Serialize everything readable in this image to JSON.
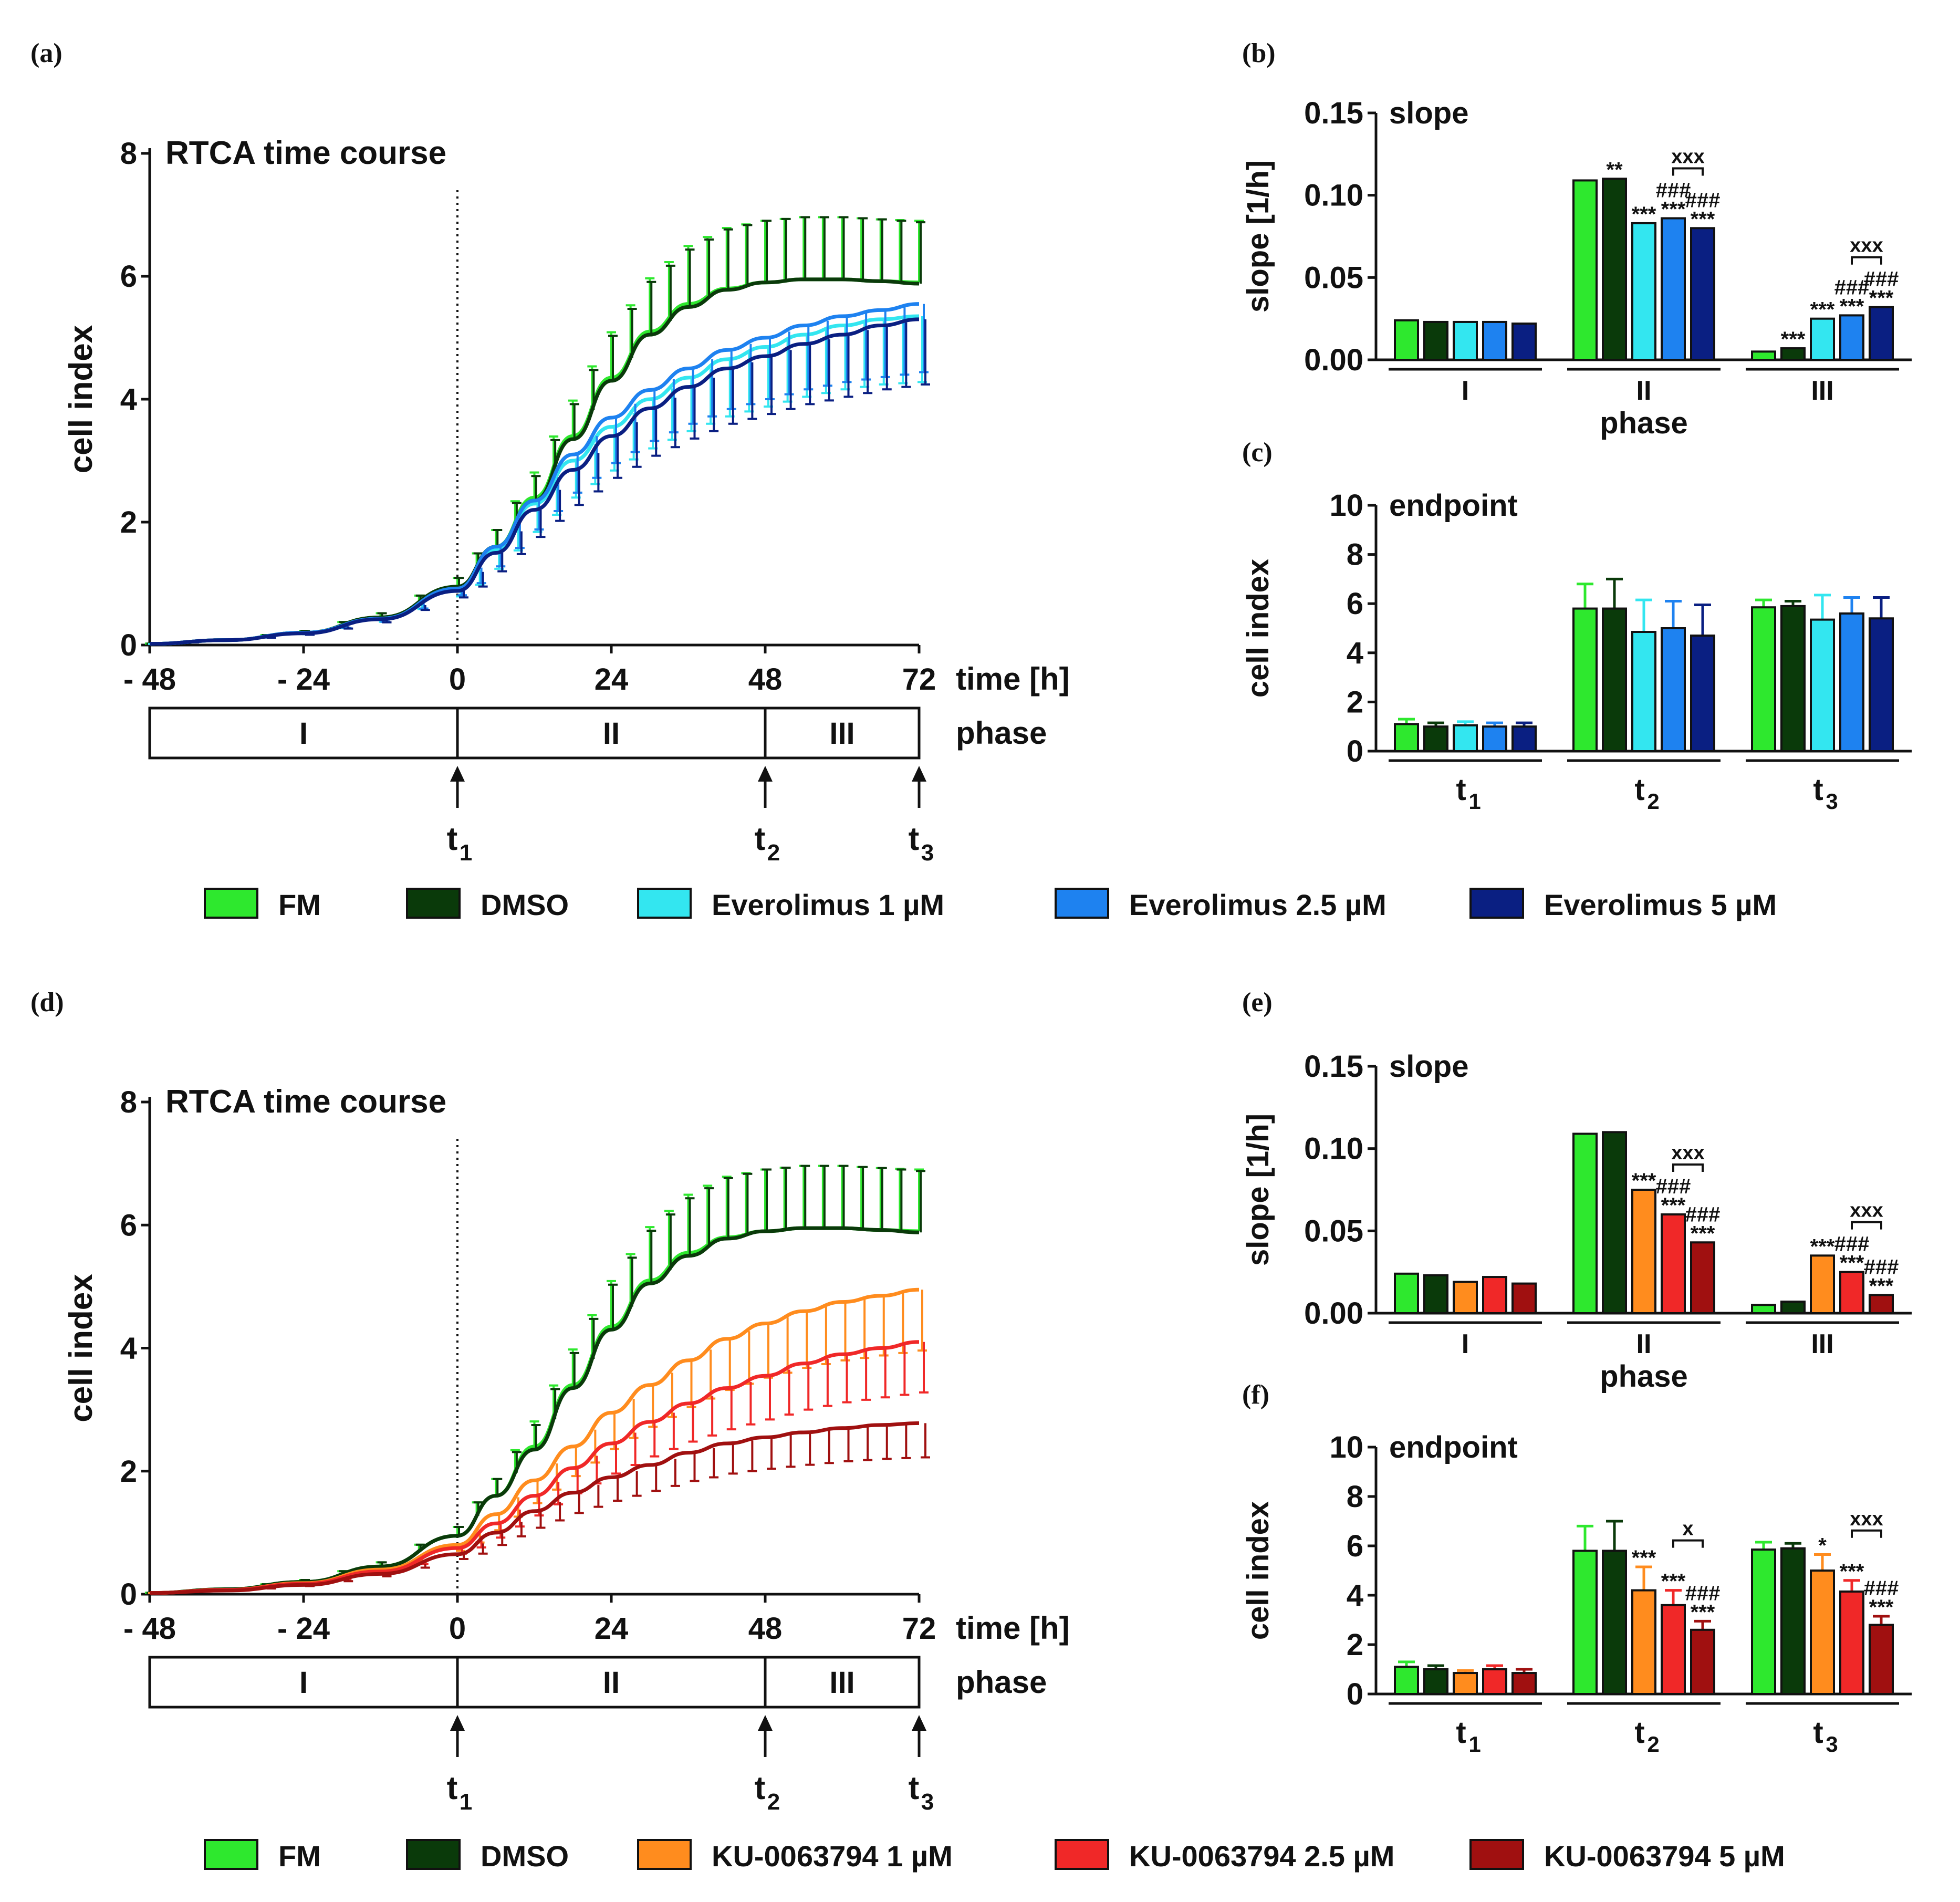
{
  "panel_labels": {
    "a": "(a)",
    "b": "(b)",
    "c": "(c)",
    "d": "(d)",
    "e": "(e)",
    "f": "(f)"
  },
  "colors": {
    "FM": "#2ee82e",
    "DMSO": "#0a3a0a",
    "Eve1": "#33e6f0",
    "Eve25": "#1e82f0",
    "Eve5": "#0a1f82",
    "KU1": "#ff8c1e",
    "KU25": "#f02828",
    "KU5": "#a01010"
  },
  "common": {
    "tc_title": "RTCA time course",
    "y_label_tc": "cell index",
    "x_label_tc": "time [h]",
    "phase_label": "phase",
    "slope_title": "slope",
    "slope_ylabel": "slope [1/h]",
    "slope_xlabel": "phase",
    "endpoint_title": "endpoint",
    "endpoint_ylabel": "cell index",
    "x_ticks": [
      "- 48",
      "- 24",
      "0",
      "24",
      "48",
      "72"
    ],
    "y_ticks_tc": [
      "0",
      "2",
      "4",
      "6",
      "8"
    ],
    "y_ticks_slope": [
      "0.00",
      "0.05",
      "0.10",
      "0.15"
    ],
    "y_ticks_endpoint": [
      "0",
      "2",
      "4",
      "6",
      "8",
      "10"
    ],
    "phases": [
      "I",
      "II",
      "III"
    ],
    "timepoints": [
      "t",
      "t",
      "t"
    ],
    "timepoint_subs": [
      "1",
      "2",
      "3"
    ]
  },
  "legend_top": [
    {
      "key": "FM",
      "label": "FM"
    },
    {
      "key": "DMSO",
      "label": "DMSO"
    },
    {
      "key": "Eve1",
      "label": "Everolimus   1 µM"
    },
    {
      "key": "Eve25",
      "label": "Everolimus   2.5 µM"
    },
    {
      "key": "Eve5",
      "label": "Everolimus   5 µM"
    }
  ],
  "legend_bottom": [
    {
      "key": "FM",
      "label": "FM"
    },
    {
      "key": "DMSO",
      "label": "DMSO"
    },
    {
      "key": "KU1",
      "label": "KU-0063794  1 µM"
    },
    {
      "key": "KU25",
      "label": "KU-0063794  2.5 µM"
    },
    {
      "key": "KU5",
      "label": "KU-0063794  5 µM"
    }
  ],
  "chart_data": [
    {
      "id": "a",
      "type": "line",
      "title": "RTCA time course",
      "xlabel": "time [h]",
      "ylabel": "cell index",
      "xlim": [
        -48,
        72
      ],
      "ylim": [
        0,
        8
      ],
      "series": [
        {
          "name": "FM",
          "key": "FM",
          "x": [
            -48,
            -36,
            -24,
            -12,
            0,
            6,
            12,
            18,
            24,
            30,
            36,
            42,
            48,
            54,
            60,
            66,
            72
          ],
          "y": [
            0.02,
            0.08,
            0.2,
            0.45,
            0.95,
            1.6,
            2.4,
            3.4,
            4.35,
            5.1,
            5.55,
            5.8,
            5.9,
            5.95,
            5.95,
            5.92,
            5.9
          ]
        },
        {
          "name": "DMSO",
          "key": "DMSO",
          "x": [
            -48,
            -36,
            -24,
            -12,
            0,
            6,
            12,
            18,
            24,
            30,
            36,
            42,
            48,
            54,
            60,
            66,
            72
          ],
          "y": [
            0.02,
            0.08,
            0.2,
            0.45,
            0.95,
            1.6,
            2.35,
            3.35,
            4.3,
            5.05,
            5.5,
            5.78,
            5.9,
            5.95,
            5.95,
            5.92,
            5.88
          ]
        },
        {
          "name": "Everolimus 1 µM",
          "key": "Eve1",
          "x": [
            -48,
            -36,
            -24,
            -12,
            0,
            6,
            12,
            18,
            24,
            30,
            36,
            42,
            48,
            54,
            60,
            66,
            72
          ],
          "y": [
            0.02,
            0.08,
            0.2,
            0.43,
            0.9,
            1.55,
            2.3,
            3.0,
            3.55,
            4.0,
            4.35,
            4.65,
            4.85,
            5.05,
            5.2,
            5.3,
            5.35
          ]
        },
        {
          "name": "Everolimus 2.5 µM",
          "key": "Eve25",
          "x": [
            -48,
            -36,
            -24,
            -12,
            0,
            6,
            12,
            18,
            24,
            30,
            36,
            42,
            48,
            54,
            60,
            66,
            72
          ],
          "y": [
            0.02,
            0.08,
            0.2,
            0.43,
            0.92,
            1.6,
            2.35,
            3.1,
            3.7,
            4.15,
            4.5,
            4.8,
            5.0,
            5.2,
            5.35,
            5.45,
            5.55
          ]
        },
        {
          "name": "Everolimus 5 µM",
          "key": "Eve5",
          "x": [
            -48,
            -36,
            -24,
            -12,
            0,
            6,
            12,
            18,
            24,
            30,
            36,
            42,
            48,
            54,
            60,
            66,
            72
          ],
          "y": [
            0.02,
            0.08,
            0.19,
            0.42,
            0.88,
            1.5,
            2.2,
            2.85,
            3.4,
            3.85,
            4.2,
            4.5,
            4.7,
            4.9,
            5.05,
            5.2,
            5.3
          ]
        }
      ]
    },
    {
      "id": "b",
      "type": "bar",
      "title": "slope",
      "ylabel": "slope [1/h]",
      "xlabel": "phase",
      "ylim": [
        0,
        0.15
      ],
      "categories": [
        "I",
        "II",
        "III"
      ],
      "series": [
        {
          "name": "FM",
          "key": "FM",
          "values": [
            0.024,
            0.109,
            0.005
          ]
        },
        {
          "name": "DMSO",
          "key": "DMSO",
          "values": [
            0.023,
            0.11,
            0.007
          ]
        },
        {
          "name": "Everolimus 1 µM",
          "key": "Eve1",
          "values": [
            0.023,
            0.083,
            0.025
          ]
        },
        {
          "name": "Everolimus 2.5 µM",
          "key": "Eve25",
          "values": [
            0.023,
            0.086,
            0.027
          ]
        },
        {
          "name": "Everolimus 5 µM",
          "key": "Eve5",
          "values": [
            0.022,
            0.08,
            0.032
          ]
        }
      ],
      "annotations": [
        {
          "cat": 1,
          "bar": 1,
          "text": "**"
        },
        {
          "cat": 1,
          "bar": 2,
          "text": "***"
        },
        {
          "cat": 1,
          "bar": 3,
          "text": "***",
          "text2": "###"
        },
        {
          "cat": 1,
          "bar": 4,
          "text": "***",
          "text2": "###"
        },
        {
          "cat": 2,
          "bar": 1,
          "text": "***"
        },
        {
          "cat": 2,
          "bar": 2,
          "text": "***"
        },
        {
          "cat": 2,
          "bar": 3,
          "text": "***",
          "text2": "###"
        },
        {
          "cat": 2,
          "bar": 4,
          "text": "***",
          "text2": "###"
        }
      ],
      "brackets": [
        {
          "cat": 1,
          "from": 3,
          "to": 4,
          "text": "xxx"
        },
        {
          "cat": 2,
          "from": 3,
          "to": 4,
          "text": "xxx"
        }
      ]
    },
    {
      "id": "c",
      "type": "bar",
      "title": "endpoint",
      "ylabel": "cell index",
      "ylim": [
        0,
        10
      ],
      "categories": [
        "t1",
        "t2",
        "t3"
      ],
      "series": [
        {
          "name": "FM",
          "key": "FM",
          "values": [
            1.1,
            5.8,
            5.85
          ],
          "err": [
            0.2,
            1.0,
            0.3
          ]
        },
        {
          "name": "DMSO",
          "key": "DMSO",
          "values": [
            1.0,
            5.8,
            5.9
          ],
          "err": [
            0.15,
            1.2,
            0.2
          ]
        },
        {
          "name": "Everolimus 1 µM",
          "key": "Eve1",
          "values": [
            1.05,
            4.85,
            5.35
          ],
          "err": [
            0.15,
            1.3,
            1.0
          ]
        },
        {
          "name": "Everolimus 2.5 µM",
          "key": "Eve25",
          "values": [
            1.0,
            5.0,
            5.6
          ],
          "err": [
            0.15,
            1.1,
            0.65
          ]
        },
        {
          "name": "Everolimus 5 µM",
          "key": "Eve5",
          "values": [
            1.0,
            4.7,
            5.4
          ],
          "err": [
            0.15,
            1.25,
            0.85
          ]
        }
      ],
      "annotations": [],
      "brackets": []
    },
    {
      "id": "d",
      "type": "line",
      "title": "RTCA time course",
      "xlabel": "time [h]",
      "ylabel": "cell index",
      "xlim": [
        -48,
        72
      ],
      "ylim": [
        0,
        8
      ],
      "series": [
        {
          "name": "FM",
          "key": "FM",
          "x": [
            -48,
            -36,
            -24,
            -12,
            0,
            6,
            12,
            18,
            24,
            30,
            36,
            42,
            48,
            54,
            60,
            66,
            72
          ],
          "y": [
            0.02,
            0.08,
            0.2,
            0.45,
            0.95,
            1.6,
            2.4,
            3.4,
            4.35,
            5.1,
            5.55,
            5.8,
            5.9,
            5.95,
            5.95,
            5.92,
            5.9
          ]
        },
        {
          "name": "DMSO",
          "key": "DMSO",
          "x": [
            -48,
            -36,
            -24,
            -12,
            0,
            6,
            12,
            18,
            24,
            30,
            36,
            42,
            48,
            54,
            60,
            66,
            72
          ],
          "y": [
            0.02,
            0.08,
            0.2,
            0.45,
            0.95,
            1.6,
            2.35,
            3.35,
            4.3,
            5.05,
            5.5,
            5.78,
            5.9,
            5.95,
            5.95,
            5.92,
            5.88
          ]
        },
        {
          "name": "KU-0063794 1 µM",
          "key": "KU1",
          "x": [
            -48,
            -36,
            -24,
            -12,
            0,
            6,
            12,
            18,
            24,
            30,
            36,
            42,
            48,
            54,
            60,
            66,
            72
          ],
          "y": [
            0.02,
            0.07,
            0.18,
            0.4,
            0.8,
            1.3,
            1.85,
            2.4,
            2.95,
            3.4,
            3.8,
            4.15,
            4.4,
            4.6,
            4.75,
            4.85,
            4.95
          ]
        },
        {
          "name": "KU-0063794 2.5 µM",
          "key": "KU25",
          "x": [
            -48,
            -36,
            -24,
            -12,
            0,
            6,
            12,
            18,
            24,
            30,
            36,
            42,
            48,
            54,
            60,
            66,
            72
          ],
          "y": [
            0.02,
            0.07,
            0.17,
            0.37,
            0.75,
            1.15,
            1.6,
            2.05,
            2.45,
            2.8,
            3.1,
            3.35,
            3.55,
            3.75,
            3.9,
            4.0,
            4.1
          ]
        },
        {
          "name": "KU-0063794 5 µM",
          "key": "KU5",
          "x": [
            -48,
            -36,
            -24,
            -12,
            0,
            6,
            12,
            18,
            24,
            30,
            36,
            42,
            48,
            54,
            60,
            66,
            72
          ],
          "y": [
            0.02,
            0.06,
            0.15,
            0.33,
            0.65,
            1.0,
            1.35,
            1.65,
            1.9,
            2.1,
            2.3,
            2.45,
            2.55,
            2.63,
            2.7,
            2.75,
            2.78
          ]
        }
      ]
    },
    {
      "id": "e",
      "type": "bar",
      "title": "slope",
      "ylabel": "slope [1/h]",
      "xlabel": "phase",
      "ylim": [
        0,
        0.15
      ],
      "categories": [
        "I",
        "II",
        "III"
      ],
      "series": [
        {
          "name": "FM",
          "key": "FM",
          "values": [
            0.024,
            0.109,
            0.005
          ]
        },
        {
          "name": "DMSO",
          "key": "DMSO",
          "values": [
            0.023,
            0.11,
            0.007
          ]
        },
        {
          "name": "KU-0063794 1 µM",
          "key": "KU1",
          "values": [
            0.019,
            0.075,
            0.035
          ]
        },
        {
          "name": "KU-0063794 2.5 µM",
          "key": "KU25",
          "values": [
            0.022,
            0.06,
            0.025
          ]
        },
        {
          "name": "KU-0063794 5 µM",
          "key": "KU5",
          "values": [
            0.018,
            0.043,
            0.011
          ]
        }
      ],
      "annotations": [
        {
          "cat": 1,
          "bar": 2,
          "text": "***"
        },
        {
          "cat": 1,
          "bar": 3,
          "text": "***",
          "text2": "###"
        },
        {
          "cat": 1,
          "bar": 4,
          "text": "***",
          "text2": "###"
        },
        {
          "cat": 2,
          "bar": 2,
          "text": "***"
        },
        {
          "cat": 2,
          "bar": 3,
          "text": "***",
          "text2": "###"
        },
        {
          "cat": 2,
          "bar": 4,
          "text": "***",
          "text2": "###"
        }
      ],
      "brackets": [
        {
          "cat": 1,
          "from": 3,
          "to": 4,
          "text": "xxx"
        },
        {
          "cat": 2,
          "from": 3,
          "to": 4,
          "text": "xxx"
        }
      ]
    },
    {
      "id": "f",
      "type": "bar",
      "title": "endpoint",
      "ylabel": "cell index",
      "ylim": [
        0,
        10
      ],
      "categories": [
        "t1",
        "t2",
        "t3"
      ],
      "series": [
        {
          "name": "FM",
          "key": "FM",
          "values": [
            1.1,
            5.8,
            5.85
          ],
          "err": [
            0.2,
            1.0,
            0.3
          ]
        },
        {
          "name": "DMSO",
          "key": "DMSO",
          "values": [
            1.0,
            5.8,
            5.9
          ],
          "err": [
            0.15,
            1.2,
            0.2
          ]
        },
        {
          "name": "KU-0063794 1 µM",
          "key": "KU1",
          "values": [
            0.85,
            4.2,
            5.0
          ],
          "err": [
            0.1,
            0.95,
            0.65
          ]
        },
        {
          "name": "KU-0063794 2.5 µM",
          "key": "KU25",
          "values": [
            1.0,
            3.6,
            4.15
          ],
          "err": [
            0.15,
            0.6,
            0.45
          ]
        },
        {
          "name": "KU-0063794 5 µM",
          "key": "KU5",
          "values": [
            0.85,
            2.6,
            2.8
          ],
          "err": [
            0.15,
            0.35,
            0.35
          ]
        }
      ],
      "annotations": [
        {
          "cat": 1,
          "bar": 2,
          "text": "***"
        },
        {
          "cat": 1,
          "bar": 3,
          "text": "***"
        },
        {
          "cat": 1,
          "bar": 4,
          "text": "***",
          "text2": "###"
        },
        {
          "cat": 2,
          "bar": 2,
          "text": "*"
        },
        {
          "cat": 2,
          "bar": 3,
          "text": "***"
        },
        {
          "cat": 2,
          "bar": 4,
          "text": "***",
          "text2": "###"
        }
      ],
      "brackets": [
        {
          "cat": 1,
          "from": 3,
          "to": 4,
          "text": "x"
        },
        {
          "cat": 2,
          "from": 3,
          "to": 4,
          "text": "xxx"
        }
      ]
    }
  ]
}
